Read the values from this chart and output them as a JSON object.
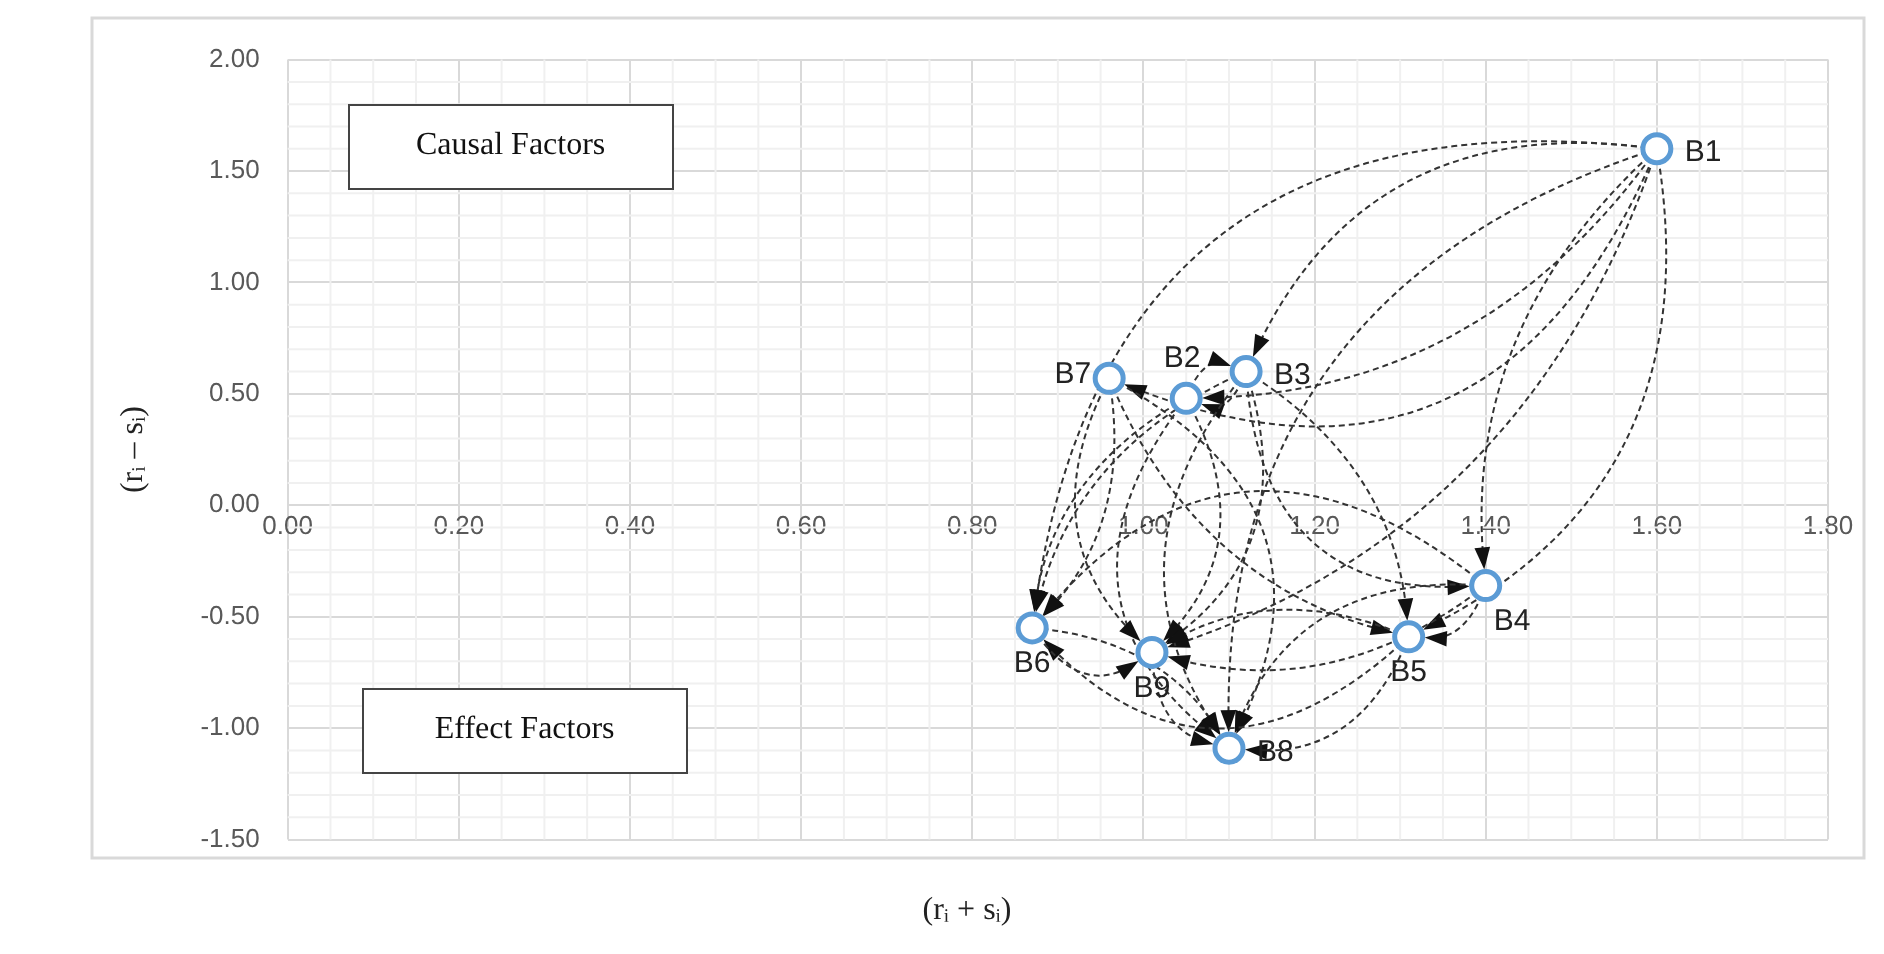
{
  "chart_data": {
    "type": "scatter",
    "xlabel": "(rᵢ + sᵢ)",
    "ylabel": "(rᵢ – sᵢ)",
    "x": [
      1.6,
      1.05,
      1.12,
      1.4,
      1.31,
      0.87,
      0.96,
      1.1,
      1.01
    ],
    "values": [
      1.6,
      0.48,
      0.6,
      -0.36,
      -0.59,
      -0.55,
      0.57,
      -1.09,
      -0.66
    ],
    "color": "#5b9bd5",
    "marker": "circle",
    "xlim": [
      0,
      1.8
    ],
    "ylim": [
      -1.5,
      2
    ],
    "xticks": [
      {
        "value": 0,
        "label": "0.00"
      },
      {
        "value": 0.2,
        "label": "0.20"
      },
      {
        "value": 0.4,
        "label": "0.40"
      },
      {
        "value": 0.6,
        "label": "0.60"
      },
      {
        "value": 0.8,
        "label": "0.80"
      },
      {
        "value": 1.0,
        "label": "1.00"
      },
      {
        "value": 1.2,
        "label": "1.20"
      },
      {
        "value": 1.4,
        "label": "1.40"
      },
      {
        "value": 1.6,
        "label": "1.60"
      },
      {
        "value": 1.8,
        "label": "1.80"
      }
    ],
    "yticks": [
      {
        "value": -1.5,
        "label": "-1.50"
      },
      {
        "value": -1,
        "label": "-1.00"
      },
      {
        "value": -0.5,
        "label": "-0.50"
      },
      {
        "value": 0,
        "label": "0.00"
      },
      {
        "value": 0.5,
        "label": "0.50"
      },
      {
        "value": 1,
        "label": "1.00"
      },
      {
        "value": 1.5,
        "label": "1.50"
      },
      {
        "value": 2,
        "label": "2.00"
      }
    ],
    "grid": true,
    "legend": false,
    "annotations": [
      "Causal Factors",
      "Effect Factors",
      {
        "text": "B1",
        "x": 1.6,
        "y": 1.6
      },
      {
        "text": "B2",
        "x": 1.05,
        "y": 0.48
      },
      {
        "text": "B3",
        "x": 1.12,
        "y": 0.6
      },
      {
        "text": "B4",
        "x": 1.4,
        "y": -0.36
      },
      {
        "text": "B5",
        "x": 1.31,
        "y": -0.59
      },
      {
        "text": "B6",
        "x": 0.87,
        "y": -0.55
      },
      {
        "text": "B7",
        "x": 0.96,
        "y": 0.57
      },
      {
        "text": "B8",
        "x": 1.1,
        "y": -1.09
      },
      {
        "text": "B9",
        "x": 1.01,
        "y": -0.66
      }
    ]
  }
}
